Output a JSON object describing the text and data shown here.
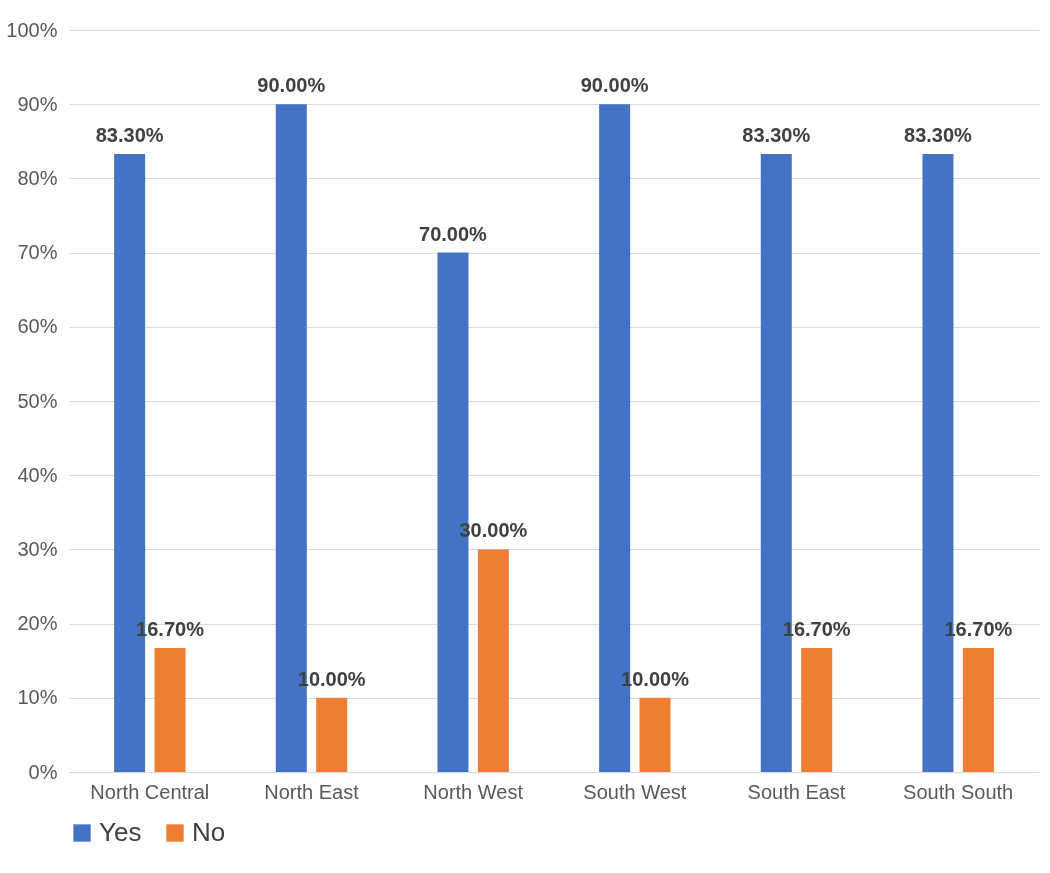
{
  "chart_data": {
    "type": "bar",
    "categories": [
      "North Central",
      "North East",
      "North West",
      "South West",
      "South East",
      "South South"
    ],
    "series": [
      {
        "name": "Yes",
        "color": "#4472c4",
        "values": [
          83.3,
          90,
          70,
          90,
          83.3,
          83.3
        ],
        "value_labels": [
          "83.30%",
          "90.00%",
          "70.00%",
          "90.00%",
          "83.30%",
          "83.30%"
        ]
      },
      {
        "name": "No",
        "color": "#ed7d31",
        "values": [
          16.7,
          10,
          30,
          10,
          16.7,
          16.7
        ],
        "value_labels": [
          "16.70%",
          "10.00%",
          "30.00%",
          "10.00%",
          "16.70%",
          "16.70%"
        ]
      }
    ],
    "ylim": [
      0,
      100
    ],
    "yticks": [
      {
        "value": 0,
        "label": "0%"
      },
      {
        "value": 10,
        "label": "10%"
      },
      {
        "value": 20,
        "label": "20%"
      },
      {
        "value": 30,
        "label": "30%"
      },
      {
        "value": 40,
        "label": "40%"
      },
      {
        "value": 50,
        "label": "50%"
      },
      {
        "value": 60,
        "label": "60%"
      },
      {
        "value": 70,
        "label": "70%"
      },
      {
        "value": 80,
        "label": "80%"
      },
      {
        "value": 90,
        "label": "90%"
      },
      {
        "value": 100,
        "label": "100%"
      }
    ],
    "grid": "y",
    "legend": "bottom"
  }
}
